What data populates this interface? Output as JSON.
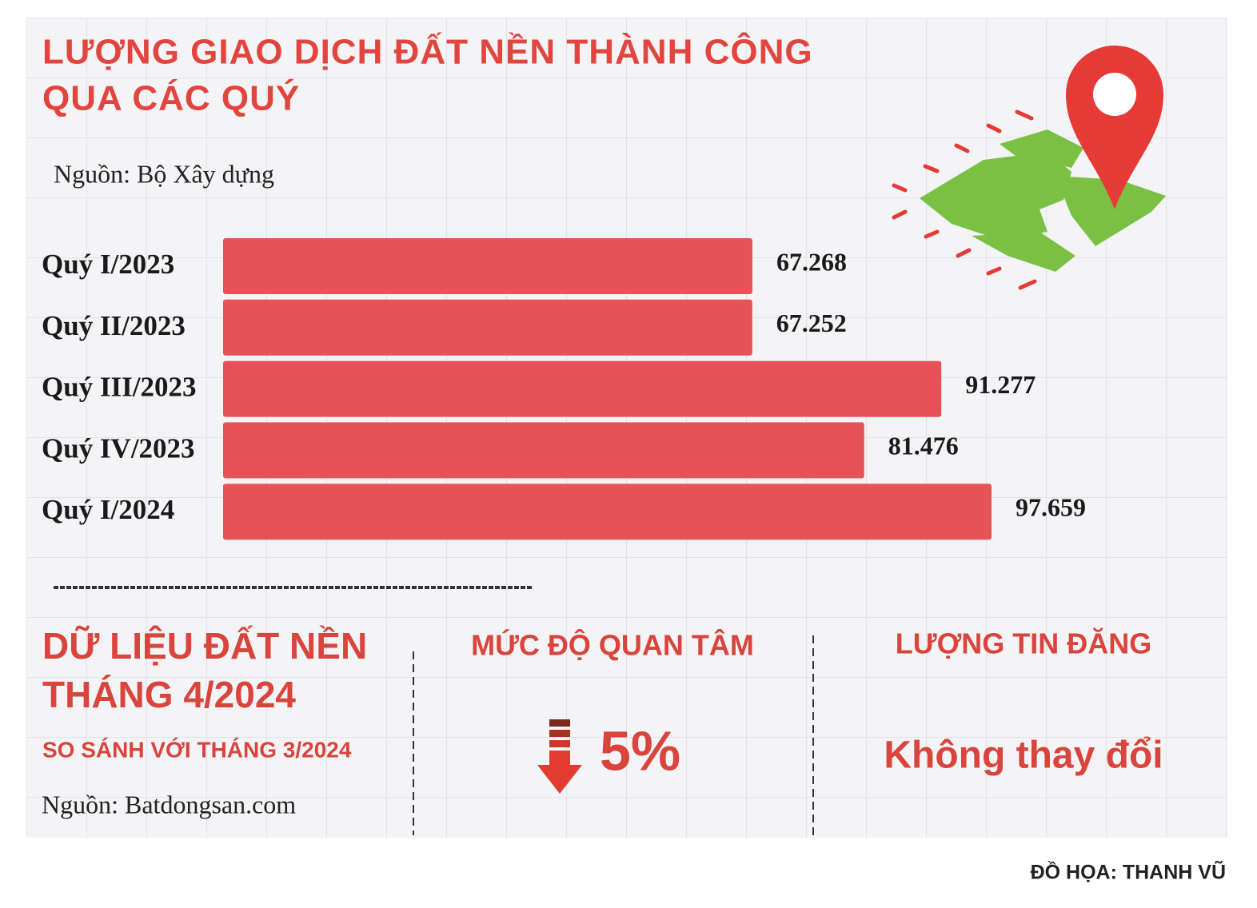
{
  "chart_data": {
    "type": "bar",
    "title": [
      "LƯỢNG GIAO DỊCH ĐẤT NỀN THÀNH CÔNG",
      "QUA CÁC QUÝ"
    ],
    "source": "Nguồn: Bộ Xây dựng",
    "categories": [
      "Quý I/2023",
      "Quý II/2023",
      "Quý III/2023",
      "Quý IV/2023",
      "Quý I/2024"
    ],
    "values": [
      67268,
      67252,
      91277,
      81476,
      97659
    ],
    "value_labels": [
      "67.268",
      "67.252",
      "91.277",
      "81.476",
      "97.659"
    ],
    "color": "#e55258"
  },
  "summary": {
    "title": [
      "DỮ LIỆU ĐẤT NỀN",
      "THÁNG 4/2024"
    ],
    "subtitle": "SO SÁNH VỚI THÁNG 3/2024",
    "source": "Nguồn: Batdongsan.com",
    "interest": {
      "label": "MỨC ĐỘ QUAN TÂM",
      "change": "5%"
    },
    "listings": {
      "label": "LƯỢNG TIN ĐĂNG",
      "change": "Không thay đổi"
    }
  },
  "credit": "ĐỒ HỌA: THANH VŨ"
}
